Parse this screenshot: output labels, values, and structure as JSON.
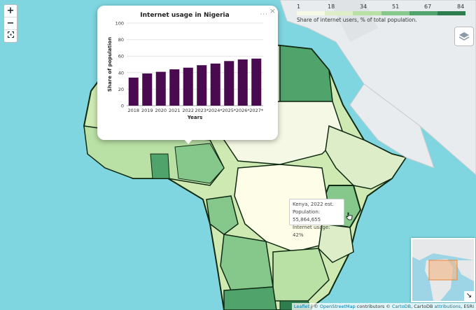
{
  "map": {
    "zoom_in": "+",
    "zoom_out": "−",
    "fullscreen_icon": "fullscreen-icon",
    "layers_icon": "layers-icon",
    "colors": {
      "ocean": "#7fd6e0",
      "land_gray": "#e9ecee",
      "border": "#0f2a12"
    }
  },
  "legend": {
    "ticks": [
      "1",
      "18",
      "34",
      "51",
      "67",
      "84"
    ],
    "colors": [
      "#f4f8e4",
      "#dcedc8",
      "#b9e0a5",
      "#86c78c",
      "#4fa36b",
      "#2e7d4f"
    ],
    "title": "Share of internet users, % of total population."
  },
  "popup": {
    "menu_label": "···",
    "close_label": "×",
    "chart_data": {
      "type": "bar",
      "title": "Internet usage in Nigeria",
      "xlabel": "Years",
      "ylabel": "Share of population",
      "categories": [
        "2018",
        "2019",
        "2020",
        "2021",
        "2022",
        "2023*",
        "2024*",
        "2025*",
        "2026*",
        "2027*"
      ],
      "values": [
        34,
        39,
        41,
        44,
        46,
        49,
        51,
        54,
        56,
        57
      ],
      "ylim": [
        0,
        100
      ],
      "yticks": [
        0,
        20,
        40,
        60,
        80,
        100
      ],
      "grid": true,
      "bar_color": "#4a0a4f"
    }
  },
  "hover_tooltip": {
    "line1": "Kenya, 2022 est.",
    "line2": "Population: 55,864,655",
    "line3": "Internet usage: 42%"
  },
  "minimap": {
    "toggle_icon": "collapse-arrow-icon",
    "toggle_glyph": "↘"
  },
  "attribution": {
    "leaflet": "Leaflet",
    "sep1": " | © ",
    "osm": "OpenStreetMap",
    "contrib": " contributors © ",
    "cartodb": "CartoDB",
    "mid": ", CartoDB ",
    "attributions": "attributions",
    "end": ", ESRI"
  }
}
